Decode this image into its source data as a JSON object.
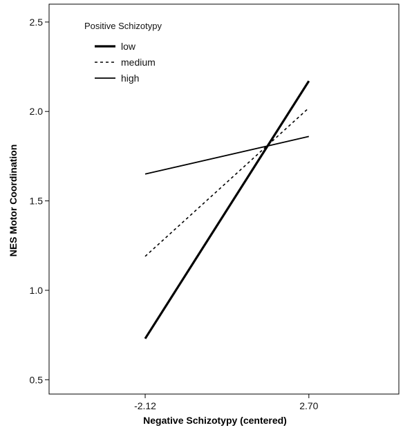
{
  "chart_data": {
    "type": "line",
    "title": "",
    "xlabel": "Negative Schizotypy (centered)",
    "ylabel": "NES Motor Coordination",
    "x": [
      -2.12,
      2.7
    ],
    "x_tick_labels": [
      "-2.12",
      "2.70"
    ],
    "y_tick_labels": [
      "0.5",
      "1.0",
      "1.5",
      "2.0",
      "2.5"
    ],
    "y_ticks": [
      0.5,
      1.0,
      1.5,
      2.0,
      2.5
    ],
    "ylim": [
      0.42,
      2.6
    ],
    "xlim": [
      -4.95,
      5.35
    ],
    "grid": false,
    "legend": {
      "title": "Positive Schizotypy",
      "position": "top-left"
    },
    "series": [
      {
        "name": "low",
        "values": [
          0.73,
          2.17
        ],
        "style": "solid-thick",
        "color": "#000000"
      },
      {
        "name": "medium",
        "values": [
          1.19,
          2.02
        ],
        "style": "dotted",
        "color": "#000000"
      },
      {
        "name": "high",
        "values": [
          1.65,
          1.86
        ],
        "style": "solid-thin",
        "color": "#000000"
      }
    ]
  }
}
